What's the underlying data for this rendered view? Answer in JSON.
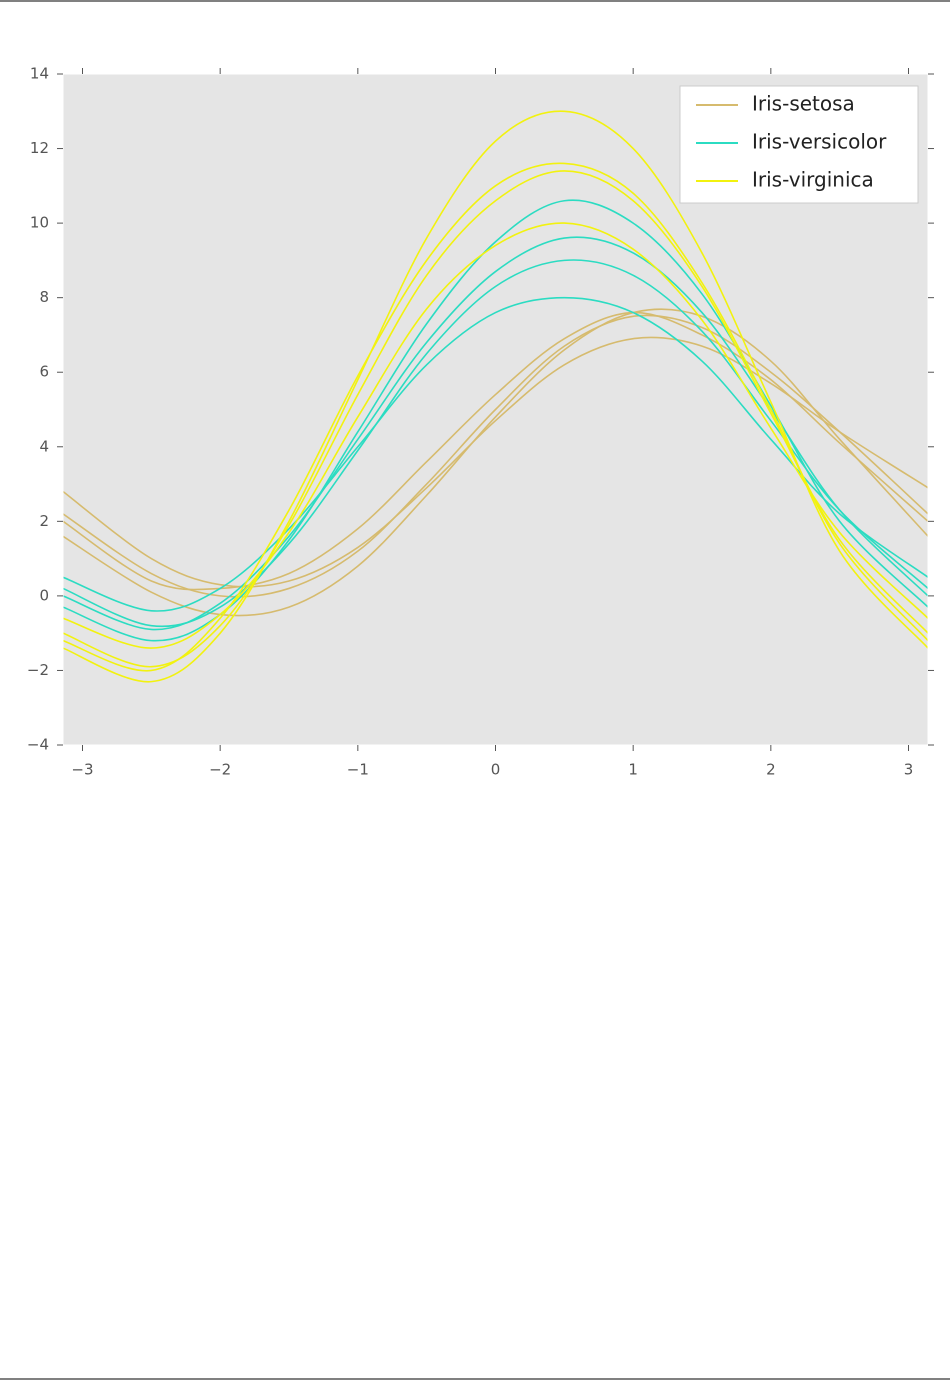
{
  "chart_data": {
    "type": "andrews",
    "x": [
      -3.14159,
      -2.5,
      -2,
      -1.5,
      -1,
      -0.5,
      0,
      0.5,
      1,
      1.5,
      2,
      2.5,
      3.14159
    ],
    "xlim": [
      -3.14159,
      3.14159
    ],
    "xticks": [
      {
        "value": -3,
        "label": "−3"
      },
      {
        "value": -2,
        "label": "−2"
      },
      {
        "value": -1,
        "label": "−1"
      },
      0,
      1,
      2,
      3
    ],
    "ylim": [
      -4,
      14
    ],
    "yticks": [
      {
        "value": -4,
        "label": "−4"
      },
      {
        "value": -2,
        "label": "−2"
      },
      0,
      2,
      4,
      6,
      8,
      10,
      12,
      14
    ],
    "legend": "upper right",
    "background": "#e5e5e5",
    "series": [
      {
        "name": "Iris-setosa",
        "color": "#d6bb6e",
        "lines": [
          [
            2.2,
            0.6,
            0.0,
            0.2,
            1.2,
            3.0,
            5.0,
            6.7,
            7.5,
            7.2,
            6.0,
            4.4,
            2.2
          ],
          [
            2.8,
            1.0,
            0.3,
            0.4,
            1.3,
            2.9,
            4.7,
            6.2,
            6.9,
            6.7,
            5.7,
            4.4,
            2.9
          ],
          [
            1.6,
            0.1,
            -0.5,
            -0.3,
            0.8,
            2.7,
            4.8,
            6.6,
            7.6,
            7.5,
            6.3,
            4.2,
            1.6
          ],
          [
            2.0,
            0.4,
            0.2,
            0.6,
            1.8,
            3.6,
            5.4,
            6.9,
            7.6,
            7.0,
            5.8,
            4.1,
            2.0
          ]
        ]
      },
      {
        "name": "Iris-versicolor",
        "color": "#2bdcc2",
        "lines": [
          [
            0.0,
            -0.9,
            -0.2,
            1.6,
            4.2,
            6.8,
            8.7,
            9.6,
            9.2,
            7.6,
            5.0,
            2.3,
            0.0
          ],
          [
            0.5,
            -0.4,
            0.2,
            1.8,
            4.0,
            6.2,
            7.6,
            8.0,
            7.6,
            6.3,
            4.2,
            2.2,
            0.5
          ],
          [
            -0.3,
            -1.2,
            -0.5,
            1.5,
            4.4,
            7.3,
            9.5,
            10.6,
            10.0,
            8.1,
            5.1,
            2.0,
            -0.3
          ],
          [
            0.2,
            -0.8,
            -0.3,
            1.4,
            3.9,
            6.5,
            8.3,
            9.0,
            8.6,
            7.1,
            4.7,
            2.3,
            0.2
          ]
        ]
      },
      {
        "name": "Iris-virginica",
        "color": "#f2f20f",
        "lines": [
          [
            -1.0,
            -1.9,
            -0.8,
            1.9,
            5.4,
            8.6,
            10.6,
            11.4,
            10.6,
            8.3,
            4.9,
            1.5,
            -1.0
          ],
          [
            -1.4,
            -2.3,
            -1.0,
            2.0,
            5.8,
            9.6,
            12.2,
            13.0,
            12.0,
            9.2,
            5.2,
            1.2,
            -1.4
          ],
          [
            -0.6,
            -1.4,
            -0.5,
            1.7,
            4.8,
            7.7,
            9.4,
            10.0,
            9.3,
            7.4,
            4.5,
            1.7,
            -0.6
          ],
          [
            -1.2,
            -2.0,
            -0.6,
            2.3,
            5.9,
            9.0,
            11.0,
            11.6,
            10.8,
            8.4,
            5.0,
            1.4,
            -1.2
          ]
        ]
      }
    ]
  }
}
